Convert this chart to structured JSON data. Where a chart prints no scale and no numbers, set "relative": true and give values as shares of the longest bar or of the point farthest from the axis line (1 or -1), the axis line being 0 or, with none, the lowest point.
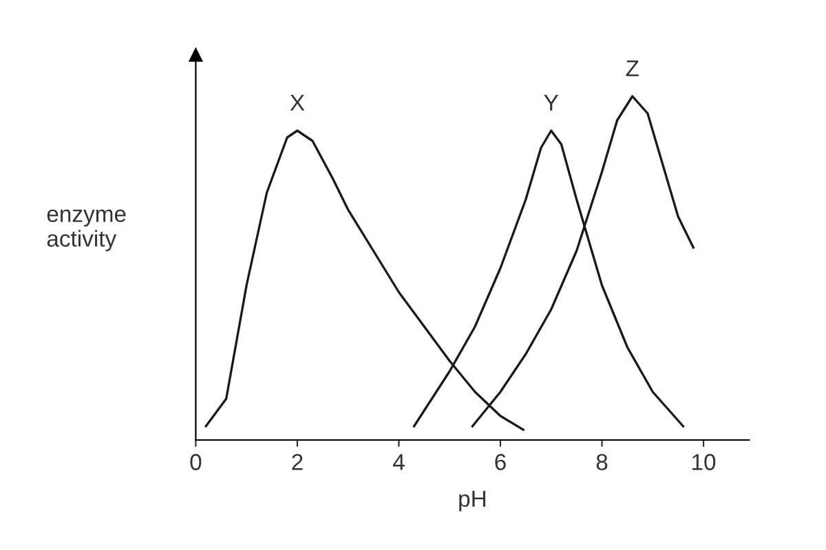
{
  "chart_data": {
    "type": "line",
    "relative": true,
    "xlabel": "pH",
    "ylabel": "enzyme\nactivity",
    "xlim": [
      0,
      10.9
    ],
    "xticks": [
      0,
      2,
      4,
      6,
      8,
      10
    ],
    "grid": false,
    "legend": false,
    "marker": "none",
    "line_style": "solid",
    "series": [
      {
        "name": "X",
        "color": "#1a1a1a",
        "x": [
          0.2,
          0.6,
          1.0,
          1.4,
          1.8,
          2.0,
          2.3,
          2.7,
          3.0,
          3.5,
          4.0,
          4.5,
          5.0,
          5.5,
          6.0,
          6.45
        ],
        "values": [
          0.04,
          0.12,
          0.45,
          0.72,
          0.88,
          0.9,
          0.87,
          0.76,
          0.67,
          0.55,
          0.43,
          0.33,
          0.23,
          0.14,
          0.07,
          0.03
        ]
      },
      {
        "name": "Y",
        "color": "#1a1a1a",
        "x": [
          4.3,
          5.0,
          5.5,
          6.0,
          6.5,
          6.8,
          7.0,
          7.2,
          7.5,
          8.0,
          8.5,
          9.0,
          9.6
        ],
        "values": [
          0.04,
          0.2,
          0.33,
          0.5,
          0.7,
          0.85,
          0.9,
          0.86,
          0.7,
          0.45,
          0.27,
          0.14,
          0.04
        ]
      },
      {
        "name": "Z",
        "color": "#1a1a1a",
        "x": [
          5.45,
          6.0,
          6.5,
          7.0,
          7.5,
          8.0,
          8.3,
          8.6,
          8.9,
          9.2,
          9.5,
          9.8
        ],
        "values": [
          0.04,
          0.14,
          0.25,
          0.38,
          0.55,
          0.78,
          0.93,
          1.0,
          0.95,
          0.8,
          0.65,
          0.56
        ]
      }
    ]
  }
}
